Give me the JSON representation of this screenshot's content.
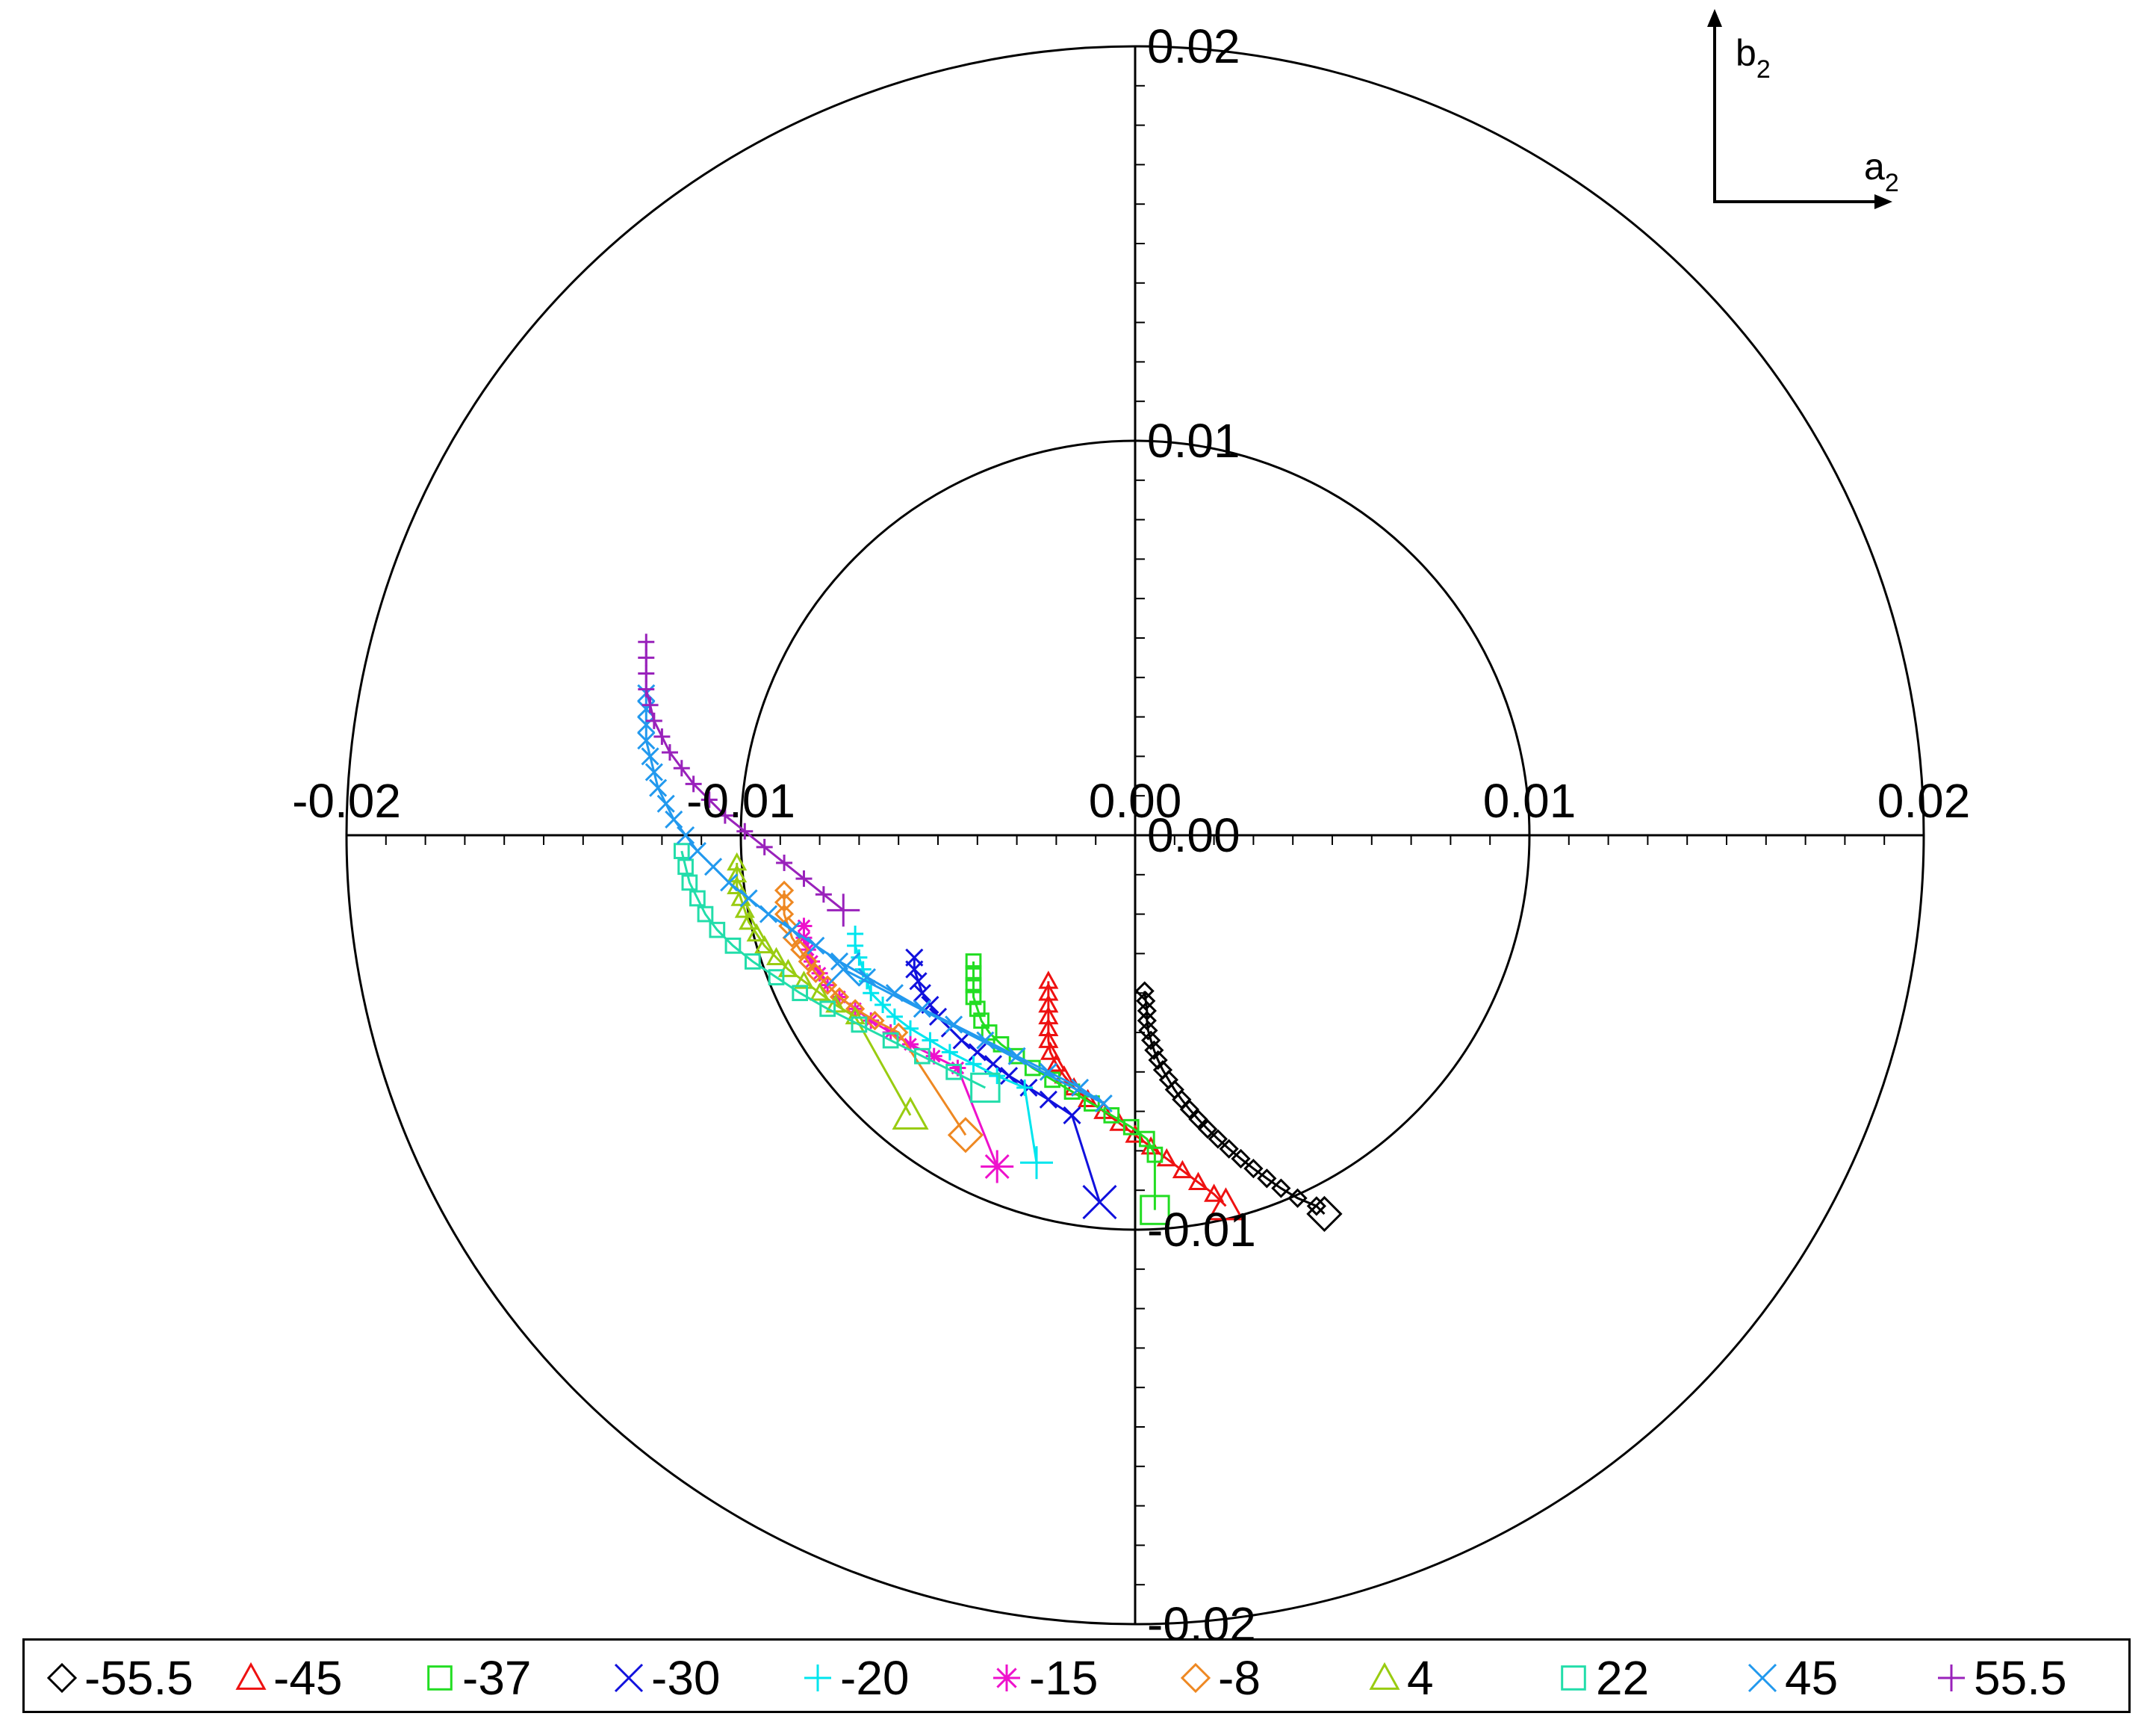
{
  "chart_data": {
    "type": "scatter",
    "coordinate": "polar-style cartesian plane (a2 horizontal, b2 vertical) with reference circles",
    "x_axis": {
      "label": "a",
      "subscript": "2",
      "ticks": [
        "-0.02",
        "-0.01",
        "0.00",
        "0.01",
        "0.02"
      ],
      "range": [
        -0.02,
        0.02
      ]
    },
    "y_axis": {
      "label": "b",
      "subscript": "2",
      "ticks": [
        "0.02",
        "0.01",
        "0.00",
        "-0.01",
        "-0.02"
      ],
      "range": [
        -0.02,
        0.02
      ]
    },
    "circles": [
      0.01,
      0.02
    ],
    "legend_position": "bottom",
    "series": [
      {
        "name": "-55.5",
        "color": "#000000",
        "marker": "diamond",
        "points": [
          [
            0.00024,
            -0.00395
          ],
          [
            0.00027,
            -0.0042
          ],
          [
            0.0003,
            -0.00445
          ],
          [
            0.0003,
            -0.0047
          ],
          [
            0.00033,
            -0.00495
          ],
          [
            0.0004,
            -0.0052
          ],
          [
            0.00048,
            -0.00545
          ],
          [
            0.00058,
            -0.0057
          ],
          [
            0.0007,
            -0.00595
          ],
          [
            0.00085,
            -0.0062
          ],
          [
            0.001,
            -0.00645
          ],
          [
            0.00118,
            -0.0067
          ],
          [
            0.00138,
            -0.00695
          ],
          [
            0.0016,
            -0.0072
          ],
          [
            0.00184,
            -0.00745
          ],
          [
            0.0021,
            -0.0077
          ],
          [
            0.00238,
            -0.00795
          ],
          [
            0.00268,
            -0.0082
          ],
          [
            0.003,
            -0.00845
          ],
          [
            0.00334,
            -0.0087
          ],
          [
            0.0037,
            -0.00895
          ],
          [
            0.00412,
            -0.0092
          ],
          [
            0.0046,
            -0.0094
          ],
          [
            0.0048,
            -0.0096
          ]
        ]
      },
      {
        "name": "-45",
        "color": "#ee1111",
        "marker": "triangle",
        "points": [
          [
            -0.0022,
            -0.0037
          ],
          [
            -0.0022,
            -0.004
          ],
          [
            -0.0022,
            -0.0043
          ],
          [
            -0.0022,
            -0.0046
          ],
          [
            -0.0022,
            -0.0049
          ],
          [
            -0.0022,
            -0.0052
          ],
          [
            -0.00215,
            -0.0055
          ],
          [
            -0.002,
            -0.0058
          ],
          [
            -0.0018,
            -0.0061
          ],
          [
            -0.00155,
            -0.0064
          ],
          [
            -0.0012,
            -0.0067
          ],
          [
            -0.0008,
            -0.007
          ],
          [
            -0.0004,
            -0.0073
          ],
          [
            0.0,
            -0.0076
          ],
          [
            0.0004,
            -0.0079
          ],
          [
            0.0008,
            -0.0082
          ],
          [
            0.0012,
            -0.0085
          ],
          [
            0.0016,
            -0.0088
          ],
          [
            0.002,
            -0.0091
          ],
          [
            0.0023,
            -0.0094
          ]
        ]
      },
      {
        "name": "-37",
        "color": "#22dd22",
        "marker": "square",
        "points": [
          [
            -0.0041,
            -0.0032
          ],
          [
            -0.0041,
            -0.0035
          ],
          [
            -0.0041,
            -0.0038
          ],
          [
            -0.0041,
            -0.0041
          ],
          [
            -0.004,
            -0.0044
          ],
          [
            -0.0039,
            -0.0047
          ],
          [
            -0.0037,
            -0.005
          ],
          [
            -0.0034,
            -0.0053
          ],
          [
            -0.003,
            -0.0056
          ],
          [
            -0.0026,
            -0.0059
          ],
          [
            -0.0021,
            -0.0062
          ],
          [
            -0.0016,
            -0.0065
          ],
          [
            -0.0011,
            -0.0068
          ],
          [
            -0.0006,
            -0.0071
          ],
          [
            -0.0001,
            -0.0074
          ],
          [
            0.0003,
            -0.0077
          ],
          [
            0.0005,
            -0.0081
          ],
          [
            0.0005,
            -0.0095
          ]
        ]
      },
      {
        "name": "-30",
        "color": "#1111dd",
        "marker": "cross",
        "points": [
          [
            -0.0056,
            -0.0031
          ],
          [
            -0.0056,
            -0.0034
          ],
          [
            -0.0055,
            -0.0037
          ],
          [
            -0.0054,
            -0.004
          ],
          [
            -0.0052,
            -0.0043
          ],
          [
            -0.005,
            -0.0046
          ],
          [
            -0.0047,
            -0.0049
          ],
          [
            -0.0044,
            -0.0052
          ],
          [
            -0.004,
            -0.0055
          ],
          [
            -0.0036,
            -0.0058
          ],
          [
            -0.0032,
            -0.0061
          ],
          [
            -0.0027,
            -0.0064
          ],
          [
            -0.0022,
            -0.0067
          ],
          [
            -0.0016,
            -0.0071
          ],
          [
            -0.0009,
            -0.0093
          ]
        ]
      },
      {
        "name": "-20",
        "color": "#00e5ee",
        "marker": "plus",
        "points": [
          [
            -0.0071,
            -0.0025
          ],
          [
            -0.0071,
            -0.0028
          ],
          [
            -0.007,
            -0.0031
          ],
          [
            -0.0069,
            -0.0034
          ],
          [
            -0.0068,
            -0.0037
          ],
          [
            -0.0067,
            -0.004
          ],
          [
            -0.0064,
            -0.0043
          ],
          [
            -0.0061,
            -0.0046
          ],
          [
            -0.0057,
            -0.0049
          ],
          [
            -0.0052,
            -0.0052
          ],
          [
            -0.0047,
            -0.0055
          ],
          [
            -0.0041,
            -0.0058
          ],
          [
            -0.0035,
            -0.0061
          ],
          [
            -0.0028,
            -0.0064
          ],
          [
            -0.0025,
            -0.0083
          ]
        ]
      },
      {
        "name": "-15",
        "color": "#ee11cc",
        "marker": "star",
        "points": [
          [
            -0.0084,
            -0.0023
          ],
          [
            -0.0084,
            -0.0026
          ],
          [
            -0.0083,
            -0.0029
          ],
          [
            -0.0082,
            -0.0032
          ],
          [
            -0.008,
            -0.0035
          ],
          [
            -0.0078,
            -0.0038
          ],
          [
            -0.0075,
            -0.0041
          ],
          [
            -0.0071,
            -0.0044
          ],
          [
            -0.0067,
            -0.0047
          ],
          [
            -0.0062,
            -0.005
          ],
          [
            -0.0057,
            -0.0053
          ],
          [
            -0.0051,
            -0.0056
          ],
          [
            -0.0045,
            -0.0059
          ],
          [
            -0.0035,
            -0.0084
          ]
        ]
      },
      {
        "name": "-8",
        "color": "#ee8822",
        "marker": "diamond",
        "points": [
          [
            -0.0089,
            -0.0014
          ],
          [
            -0.0089,
            -0.0017
          ],
          [
            -0.0089,
            -0.002
          ],
          [
            -0.0088,
            -0.0023
          ],
          [
            -0.0087,
            -0.0026
          ],
          [
            -0.0085,
            -0.0029
          ],
          [
            -0.0083,
            -0.0032
          ],
          [
            -0.0081,
            -0.0035
          ],
          [
            -0.0078,
            -0.0038
          ],
          [
            -0.0075,
            -0.0041
          ],
          [
            -0.0071,
            -0.0044
          ],
          [
            -0.0066,
            -0.0047
          ],
          [
            -0.006,
            -0.005
          ],
          [
            -0.0043,
            -0.0076
          ]
        ]
      },
      {
        "name": "4",
        "color": "#99cc11",
        "marker": "triangle",
        "points": [
          [
            -0.0101,
            -0.0007
          ],
          [
            -0.0101,
            -0.001
          ],
          [
            -0.0101,
            -0.0013
          ],
          [
            -0.01,
            -0.0016
          ],
          [
            -0.0099,
            -0.0019
          ],
          [
            -0.0098,
            -0.0022
          ],
          [
            -0.0096,
            -0.0025
          ],
          [
            -0.0094,
            -0.0028
          ],
          [
            -0.0091,
            -0.0031
          ],
          [
            -0.0088,
            -0.0034
          ],
          [
            -0.0084,
            -0.0037
          ],
          [
            -0.008,
            -0.004
          ],
          [
            -0.0076,
            -0.0043
          ],
          [
            -0.0071,
            -0.0046
          ],
          [
            -0.0057,
            -0.0071
          ]
        ]
      },
      {
        "name": "22",
        "color": "#22ddaa",
        "marker": "square",
        "points": [
          [
            -0.0115,
            -0.0004
          ],
          [
            -0.0114,
            -0.0008
          ],
          [
            -0.0113,
            -0.0012
          ],
          [
            -0.0111,
            -0.0016
          ],
          [
            -0.0109,
            -0.002
          ],
          [
            -0.0106,
            -0.0024
          ],
          [
            -0.0102,
            -0.0028
          ],
          [
            -0.0097,
            -0.0032
          ],
          [
            -0.0091,
            -0.0036
          ],
          [
            -0.0085,
            -0.004
          ],
          [
            -0.0078,
            -0.0044
          ],
          [
            -0.007,
            -0.0048
          ],
          [
            -0.0062,
            -0.0052
          ],
          [
            -0.0054,
            -0.0056
          ],
          [
            -0.0046,
            -0.006
          ],
          [
            -0.0038,
            -0.0064
          ]
        ]
      },
      {
        "name": "45",
        "color": "#2299ee",
        "marker": "cross",
        "points": [
          [
            -0.0124,
            0.0036
          ],
          [
            -0.0124,
            0.0032
          ],
          [
            -0.0124,
            0.0028
          ],
          [
            -0.0124,
            0.0024
          ],
          [
            -0.0123,
            0.002
          ],
          [
            -0.0122,
            0.0016
          ],
          [
            -0.0121,
            0.0012
          ],
          [
            -0.0119,
            0.0008
          ],
          [
            -0.0117,
            0.0004
          ],
          [
            -0.0114,
            0.0
          ],
          [
            -0.0111,
            -0.0004
          ],
          [
            -0.0107,
            -0.0008
          ],
          [
            -0.0103,
            -0.0012
          ],
          [
            -0.0098,
            -0.0016
          ],
          [
            -0.0093,
            -0.002
          ],
          [
            -0.0087,
            -0.0024
          ],
          [
            -0.0081,
            -0.0028
          ],
          [
            -0.0075,
            -0.0032
          ],
          [
            -0.0068,
            -0.0036
          ],
          [
            -0.0061,
            -0.004
          ],
          [
            -0.0054,
            -0.0044
          ],
          [
            -0.0046,
            -0.0048
          ],
          [
            -0.0038,
            -0.0052
          ],
          [
            -0.003,
            -0.0056
          ],
          [
            -0.0022,
            -0.006
          ],
          [
            -0.0014,
            -0.0064
          ],
          [
            -0.0008,
            -0.0068
          ],
          [
            -0.0074,
            -0.0034
          ]
        ]
      },
      {
        "name": "55.5",
        "color": "#9922bb",
        "marker": "plus",
        "points": [
          [
            -0.0124,
            0.0049
          ],
          [
            -0.0124,
            0.0045
          ],
          [
            -0.0124,
            0.0041
          ],
          [
            -0.0124,
            0.0037
          ],
          [
            -0.0123,
            0.0033
          ],
          [
            -0.0122,
            0.0029
          ],
          [
            -0.012,
            0.0025
          ],
          [
            -0.0118,
            0.0021
          ],
          [
            -0.0115,
            0.0017
          ],
          [
            -0.0112,
            0.0013
          ],
          [
            -0.0108,
            0.0009
          ],
          [
            -0.0104,
            0.0005
          ],
          [
            -0.0099,
            0.0001
          ],
          [
            -0.0094,
            -0.0003
          ],
          [
            -0.0089,
            -0.0007
          ],
          [
            -0.0084,
            -0.0011
          ],
          [
            -0.0079,
            -0.0015
          ],
          [
            -0.0074,
            -0.0019
          ]
        ]
      }
    ]
  }
}
